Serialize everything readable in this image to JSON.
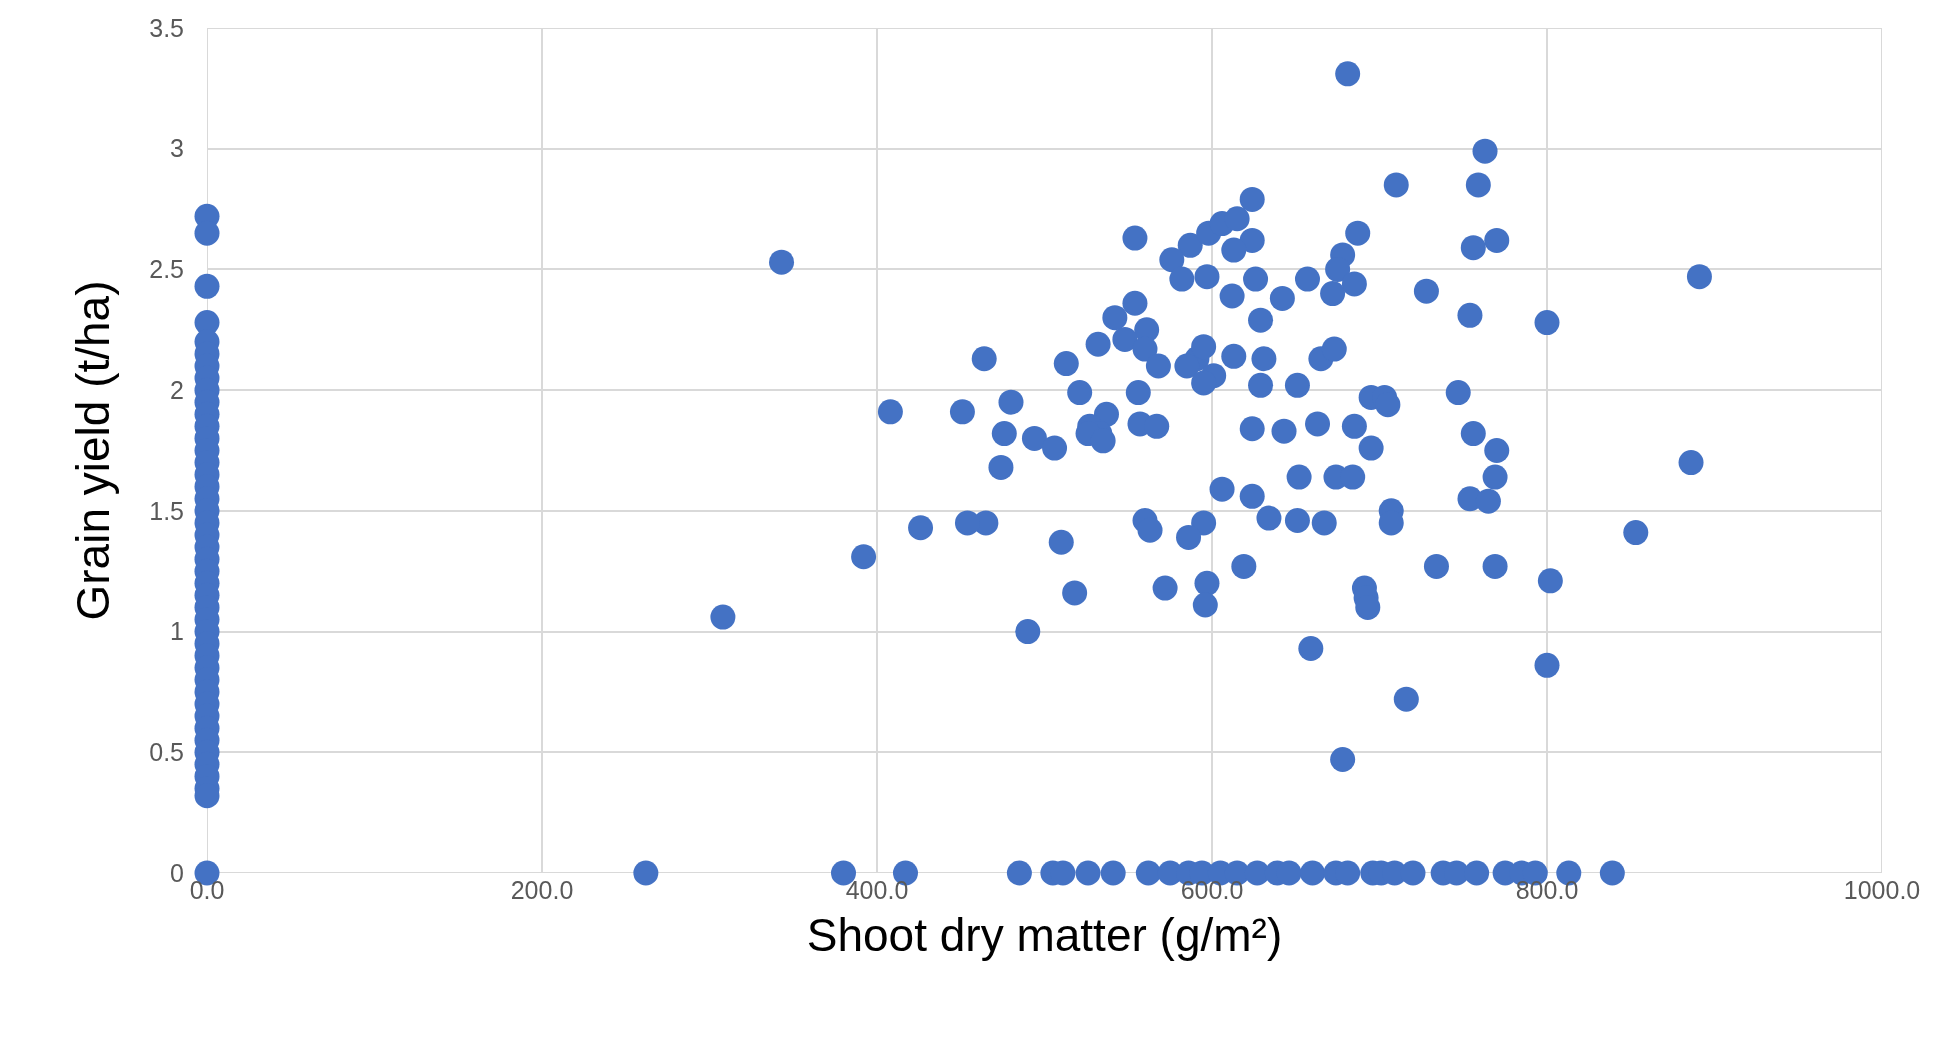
{
  "chart_data": {
    "type": "scatter",
    "xlabel": "Shoot dry matter (g/m²)",
    "ylabel": "Grain yield (t/ha)",
    "xlim": [
      0,
      1000
    ],
    "ylim": [
      0,
      3.5
    ],
    "xticks": [
      {
        "value": 0,
        "label": "0.0"
      },
      {
        "value": 200,
        "label": "200.0"
      },
      {
        "value": 400,
        "label": "400.0"
      },
      {
        "value": 600,
        "label": "600.0"
      },
      {
        "value": 800,
        "label": "800.0"
      },
      {
        "value": 1000,
        "label": "1000.0"
      }
    ],
    "yticks": [
      0,
      0.5,
      1,
      1.5,
      2,
      2.5,
      3,
      3.5
    ],
    "grid": true,
    "marker": "circle",
    "series": [
      {
        "color": "#4472c4",
        "x": [
          681,
          763,
          759,
          710,
          624,
          687,
          770,
          554,
          756,
          624,
          678,
          675,
          891,
          343,
          587,
          598,
          606,
          615,
          613,
          576,
          582,
          597,
          626,
          642,
          657,
          685,
          672,
          612,
          728,
          629,
          754,
          800,
          542,
          554,
          561,
          548,
          532,
          560,
          568,
          591,
          595,
          613,
          631,
          665,
          673,
          464,
          513,
          585,
          601,
          595,
          629,
          651,
          556,
          521,
          695,
          703,
          705,
          747,
          408,
          451,
          480,
          537,
          527,
          533,
          557,
          567,
          526,
          476,
          494,
          506,
          535,
          624,
          643,
          663,
          685,
          695,
          756,
          770,
          886,
          474,
          606,
          624,
          652,
          674,
          684,
          769,
          754,
          765,
          707,
          707,
          634,
          651,
          667,
          465,
          454,
          426,
          560,
          563,
          595,
          586,
          510,
          853,
          392,
          619,
          734,
          769,
          597,
          572,
          691,
          692,
          693,
          596,
          518,
          802,
          308,
          490,
          659,
          800,
          716,
          678,
          262,
          380,
          417,
          485,
          505,
          511,
          526,
          541,
          562,
          575,
          586,
          594,
          605,
          615,
          627,
          639,
          646,
          660,
          674,
          681,
          696,
          701,
          709,
          720,
          738,
          746,
          758,
          775,
          785,
          793,
          813,
          839,
          0,
          0,
          0,
          0,
          0,
          0,
          0,
          0,
          0,
          0,
          0,
          0,
          0,
          0,
          0,
          0,
          0,
          0,
          0,
          0,
          0,
          0,
          0,
          0,
          0,
          0,
          0,
          0,
          0,
          0,
          0,
          0,
          0,
          0,
          0,
          0,
          0,
          0,
          0,
          0,
          0,
          0,
          0,
          0
        ],
        "values": [
          3.31,
          2.99,
          2.85,
          2.85,
          2.79,
          2.65,
          2.62,
          2.63,
          2.59,
          2.62,
          2.56,
          2.5,
          2.47,
          2.53,
          2.6,
          2.65,
          2.69,
          2.71,
          2.58,
          2.54,
          2.46,
          2.47,
          2.46,
          2.38,
          2.46,
          2.44,
          2.4,
          2.39,
          2.41,
          2.29,
          2.31,
          2.28,
          2.3,
          2.36,
          2.25,
          2.21,
          2.19,
          2.17,
          2.1,
          2.13,
          2.18,
          2.14,
          2.13,
          2.13,
          2.17,
          2.13,
          2.11,
          2.1,
          2.06,
          2.03,
          2.02,
          2.02,
          1.99,
          1.99,
          1.97,
          1.97,
          1.94,
          1.99,
          1.91,
          1.91,
          1.95,
          1.9,
          1.85,
          1.82,
          1.86,
          1.85,
          1.82,
          1.82,
          1.8,
          1.76,
          1.79,
          1.84,
          1.83,
          1.86,
          1.85,
          1.76,
          1.82,
          1.75,
          1.7,
          1.68,
          1.59,
          1.56,
          1.64,
          1.64,
          1.64,
          1.64,
          1.55,
          1.54,
          1.5,
          1.45,
          1.47,
          1.46,
          1.45,
          1.45,
          1.45,
          1.43,
          1.46,
          1.42,
          1.45,
          1.39,
          1.37,
          1.41,
          1.31,
          1.27,
          1.27,
          1.27,
          1.2,
          1.18,
          1.18,
          1.14,
          1.1,
          1.11,
          1.16,
          1.21,
          1.06,
          1.0,
          0.93,
          0.86,
          0.72,
          0.47,
          0,
          0,
          0,
          0,
          0,
          0,
          0,
          0,
          0,
          0,
          0,
          0,
          0,
          0,
          0,
          0,
          0,
          0,
          0,
          0,
          0,
          0,
          0,
          0,
          0,
          0,
          0,
          0,
          0,
          0,
          0,
          0,
          2.72,
          2.65,
          2.43,
          2.28,
          2.2,
          2.15,
          2.1,
          2.05,
          2.0,
          1.95,
          1.9,
          1.85,
          1.8,
          1.75,
          1.7,
          1.65,
          1.6,
          1.55,
          1.5,
          1.45,
          1.4,
          1.35,
          1.3,
          1.25,
          1.2,
          1.15,
          1.1,
          1.05,
          1.0,
          0.95,
          0.9,
          0.85,
          0.8,
          0.75,
          0.7,
          0.65,
          0.6,
          0.55,
          0.5,
          0.45,
          0.4,
          0.35,
          0.32,
          0
        ]
      }
    ]
  }
}
